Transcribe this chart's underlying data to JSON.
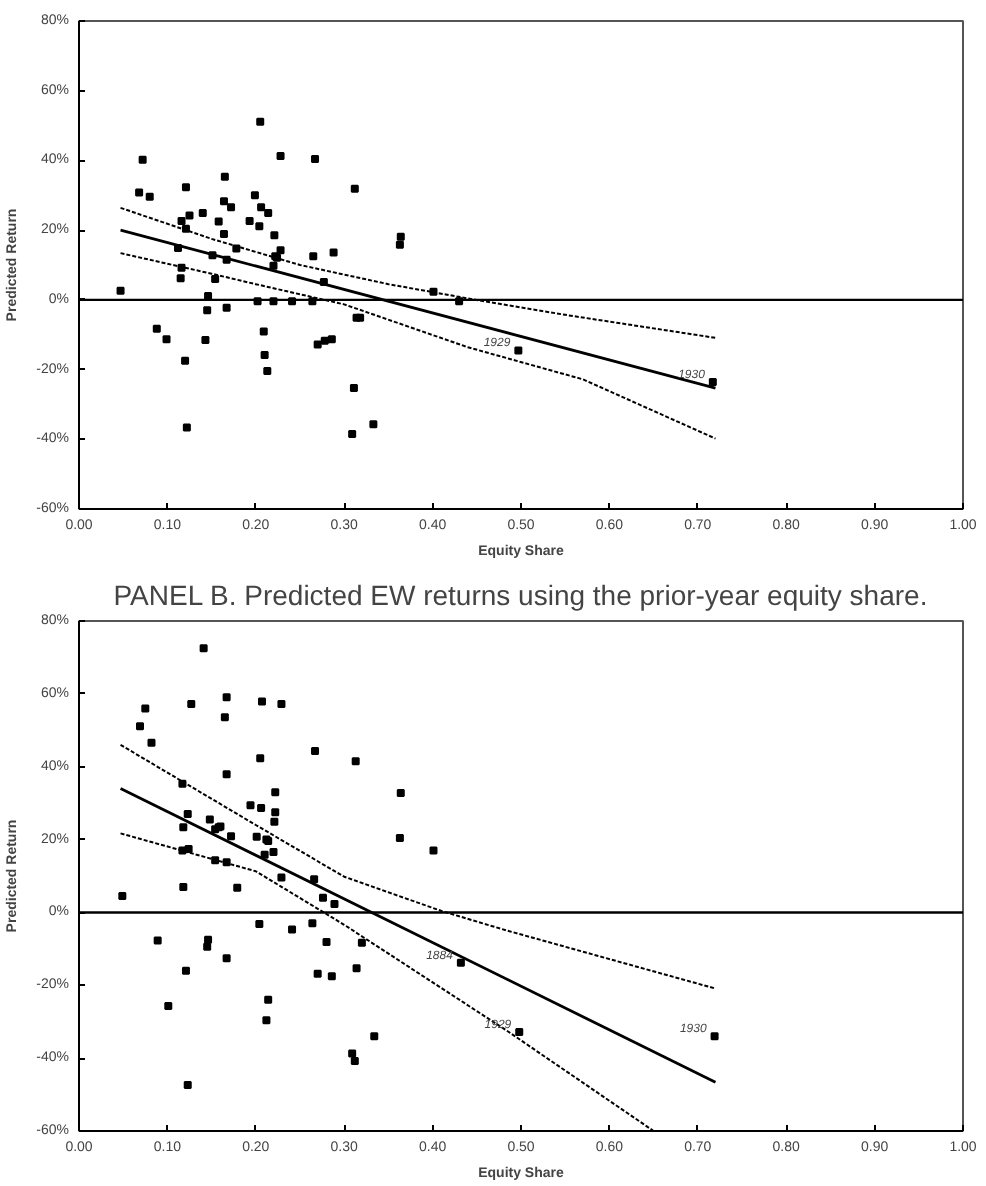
{
  "chart_data": [
    {
      "type": "scatter",
      "xlabel": "Equity Share",
      "ylabel": "Predicted Return",
      "xlim": [
        0,
        1
      ],
      "ylim": [
        -60,
        80
      ],
      "xticks": [
        {
          "value": 0,
          "label": "0.00"
        },
        {
          "value": 0.1,
          "label": "0.10"
        },
        {
          "value": 0.2,
          "label": "0.20"
        },
        {
          "value": 0.3,
          "label": "0.30"
        },
        {
          "value": 0.4,
          "label": "0.40"
        },
        {
          "value": 0.5,
          "label": "0.50"
        },
        {
          "value": 0.6,
          "label": "0.60"
        },
        {
          "value": 0.7,
          "label": "0.70"
        },
        {
          "value": 0.8,
          "label": "0.80"
        },
        {
          "value": 0.9,
          "label": "0.90"
        },
        {
          "value": 1,
          "label": "1.00"
        }
      ],
      "yticks": [
        {
          "value": -60,
          "label": "-60%"
        },
        {
          "value": -40,
          "label": "-40%"
        },
        {
          "value": -20,
          "label": "-20%"
        },
        {
          "value": 0,
          "label": "0%"
        },
        {
          "value": 20,
          "label": "20%"
        },
        {
          "value": 40,
          "label": "40%"
        },
        {
          "value": 60,
          "label": "60%"
        },
        {
          "value": 80,
          "label": "80%"
        }
      ],
      "ref_lines": [
        {
          "axis": "y",
          "value": 0,
          "color": "#000000"
        }
      ],
      "annotations": [
        {
          "text": "1929",
          "x": 0.497,
          "y": -14.5
        },
        {
          "text": "1930",
          "x": 0.717,
          "y": -23.6
        }
      ],
      "series": [
        {
          "marker": "square",
          "color": "#000000",
          "x": [
            0.047,
            0.068,
            0.072,
            0.08,
            0.088,
            0.099,
            0.121,
            0.12,
            0.122,
            0.116,
            0.125,
            0.121,
            0.112,
            0.116,
            0.115,
            0.14,
            0.146,
            0.145,
            0.143,
            0.151,
            0.154,
            0.158,
            0.164,
            0.165,
            0.164,
            0.167,
            0.167,
            0.172,
            0.178,
            0.193,
            0.199,
            0.205,
            0.204,
            0.206,
            0.202,
            0.209,
            0.21,
            0.214,
            0.213,
            0.221,
            0.222,
            0.22,
            0.22,
            0.228,
            0.228,
            0.224,
            0.241,
            0.265,
            0.264,
            0.267,
            0.27,
            0.277,
            0.278,
            0.286,
            0.288,
            0.312,
            0.311,
            0.309,
            0.314,
            0.318,
            0.333,
            0.363,
            0.364,
            0.401,
            0.43,
            0.497,
            0.717
          ],
          "values": [
            2.6,
            30.8,
            40.2,
            29.6,
            -8.3,
            -11.3,
            32.3,
            -17.5,
            -36.6,
            22.6,
            24.2,
            20.4,
            14.9,
            9.2,
            6.2,
            24.9,
            1.1,
            -3.0,
            -11.5,
            12.8,
            6.0,
            22.5,
            28.3,
            35.3,
            18.9,
            11.5,
            -2.3,
            26.6,
            14.7,
            22.6,
            30.0,
            51.1,
            21.1,
            26.6,
            -0.4,
            -9.1,
            -15.8,
            24.9,
            -20.4,
            18.5,
            12.5,
            9.8,
            -0.4,
            41.3,
            14.2,
            12.1,
            -0.4,
            12.5,
            -0.4,
            40.4,
            -12.8,
            5.1,
            -11.7,
            -11.3,
            13.6,
            31.9,
            -25.3,
            -38.5,
            -5.1,
            -5.1,
            -35.7,
            15.8,
            18.1,
            2.3,
            -0.4,
            -14.5,
            -23.6
          ]
        },
        {
          "type": "line",
          "line_style": "solid",
          "color": "#000000",
          "x": [
            0.047,
            0.72
          ],
          "values": [
            20.0,
            -25.3
          ]
        },
        {
          "type": "line",
          "line_style": "dotted",
          "color": "#000000",
          "x": [
            0.047,
            0.15,
            0.25,
            0.35,
            0.44,
            0.55,
            0.72
          ],
          "values": [
            26.4,
            17.5,
            10.0,
            4.5,
            0.4,
            -4.3,
            -10.9
          ]
        },
        {
          "type": "line",
          "line_style": "dotted",
          "color": "#000000",
          "x": [
            0.047,
            0.15,
            0.2,
            0.3,
            0.44,
            0.57,
            0.72
          ],
          "values": [
            13.4,
            7.5,
            4.5,
            -1.3,
            -13.6,
            -22.8,
            -39.8
          ]
        }
      ]
    },
    {
      "type": "scatter",
      "title": "PANEL B. Predicted EW returns using the prior-year equity share.",
      "xlabel": "Equity Share",
      "ylabel": "Predicted Return",
      "xlim": [
        0,
        1
      ],
      "ylim": [
        -60,
        80
      ],
      "xticks": [
        {
          "value": 0,
          "label": "0.00"
        },
        {
          "value": 0.1,
          "label": "0.10"
        },
        {
          "value": 0.2,
          "label": "0.20"
        },
        {
          "value": 0.3,
          "label": "0.30"
        },
        {
          "value": 0.4,
          "label": "0.40"
        },
        {
          "value": 0.5,
          "label": "0.50"
        },
        {
          "value": 0.6,
          "label": "0.60"
        },
        {
          "value": 0.7,
          "label": "0.70"
        },
        {
          "value": 0.8,
          "label": "0.80"
        },
        {
          "value": 0.9,
          "label": "0.90"
        },
        {
          "value": 1,
          "label": "1.00"
        }
      ],
      "yticks": [
        {
          "value": -60,
          "label": "-60%"
        },
        {
          "value": -40,
          "label": "-40%"
        },
        {
          "value": -20,
          "label": "-20%"
        },
        {
          "value": 0,
          "label": "0%"
        },
        {
          "value": 20,
          "label": "20%"
        },
        {
          "value": 40,
          "label": "40%"
        },
        {
          "value": 60,
          "label": "60%"
        },
        {
          "value": 80,
          "label": "80%"
        }
      ],
      "ref_lines": [
        {
          "axis": "y",
          "value": 0,
          "color": "#000000"
        }
      ],
      "annotations": [
        {
          "text": "1884",
          "x": 0.432,
          "y": -13.8
        },
        {
          "text": "1929",
          "x": 0.498,
          "y": -32.8
        },
        {
          "text": "1930",
          "x": 0.719,
          "y": -34.0
        }
      ],
      "series": [
        {
          "marker": "square",
          "color": "#000000",
          "x": [
            0.049,
            0.069,
            0.075,
            0.082,
            0.089,
            0.101,
            0.117,
            0.118,
            0.117,
            0.118,
            0.121,
            0.123,
            0.127,
            0.123,
            0.124,
            0.141,
            0.148,
            0.146,
            0.145,
            0.154,
            0.158,
            0.154,
            0.16,
            0.167,
            0.165,
            0.167,
            0.167,
            0.167,
            0.172,
            0.179,
            0.194,
            0.201,
            0.204,
            0.205,
            0.207,
            0.206,
            0.21,
            0.212,
            0.214,
            0.212,
            0.214,
            0.222,
            0.222,
            0.221,
            0.22,
            0.229,
            0.229,
            0.241,
            0.264,
            0.267,
            0.266,
            0.27,
            0.276,
            0.28,
            0.286,
            0.289,
            0.313,
            0.314,
            0.32,
            0.309,
            0.312,
            0.334,
            0.364,
            0.363,
            0.401,
            0.432,
            0.498,
            0.719
          ],
          "values": [
            4.5,
            51.1,
            56.0,
            46.6,
            -7.7,
            -25.7,
            35.3,
            23.4,
            17.0,
            7.0,
            -16.0,
            -47.4,
            57.2,
            27.0,
            17.4,
            72.5,
            25.5,
            -7.5,
            -9.4,
            22.8,
            23.4,
            14.3,
            23.6,
            59.1,
            53.6,
            37.9,
            13.8,
            -12.6,
            20.9,
            6.8,
            29.4,
            20.8,
            -3.2,
            42.3,
            57.9,
            28.7,
            15.8,
            20.0,
            -24.0,
            -29.6,
            19.6,
            33.0,
            27.5,
            24.9,
            16.6,
            57.2,
            9.6,
            -4.7,
            -3.0,
            44.3,
            9.1,
            -16.8,
            4.0,
            -8.1,
            -17.5,
            2.3,
            41.5,
            -15.3,
            -8.3,
            -38.7,
            -40.8,
            -34.0,
            32.8,
            20.4,
            17.0,
            -13.8,
            -32.8,
            -34.0
          ]
        },
        {
          "type": "line",
          "line_style": "solid",
          "color": "#000000",
          "x": [
            0.047,
            0.72
          ],
          "values": [
            34.0,
            -46.6
          ]
        },
        {
          "type": "line",
          "line_style": "dotted",
          "color": "#000000",
          "x": [
            0.047,
            0.2,
            0.3,
            0.41,
            0.483,
            0.72
          ],
          "values": [
            46.0,
            24.0,
            9.8,
            0.4,
            -4.9,
            -20.9
          ]
        },
        {
          "type": "line",
          "line_style": "dotted",
          "color": "#000000",
          "x": [
            0.047,
            0.2,
            0.3,
            0.483,
            0.65
          ],
          "values": [
            21.7,
            11.3,
            -3.4,
            -32.3,
            -60.0
          ]
        }
      ]
    }
  ]
}
